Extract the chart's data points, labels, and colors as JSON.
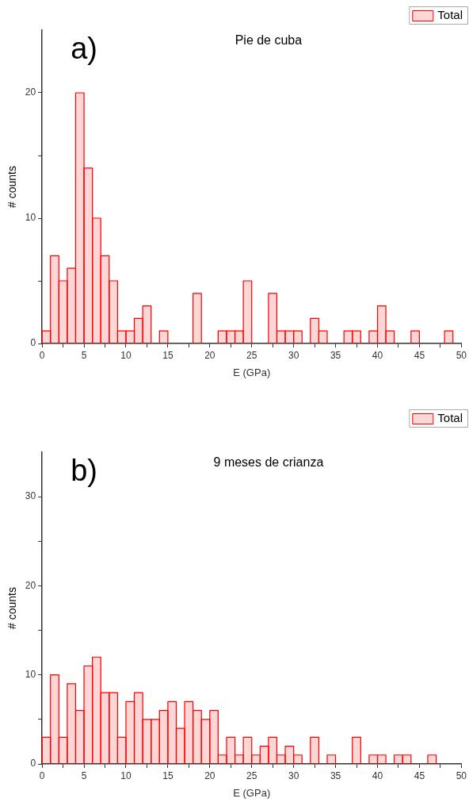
{
  "chart_data": [
    {
      "type": "histogram",
      "title": "Pie de cuba",
      "xlabel": "E (GPa)",
      "ylabel": "# counts",
      "annotations": [
        "a)"
      ],
      "legend": "top right",
      "bins": [
        0,
        1,
        2,
        3,
        4,
        5,
        6,
        7,
        8,
        9,
        10,
        11,
        12,
        13,
        14,
        15,
        16,
        17,
        18,
        19,
        20,
        21,
        22,
        23,
        24,
        25,
        26,
        27,
        28,
        29,
        30,
        31,
        32,
        33,
        34,
        35,
        36,
        37,
        38,
        39,
        40,
        41,
        42,
        43,
        44,
        45,
        46,
        47,
        48,
        49,
        50
      ],
      "series": [
        {
          "name": "Total",
          "color": "#ff0000",
          "values": [
            1,
            7,
            5,
            6,
            20,
            14,
            10,
            7,
            5,
            1,
            1,
            2,
            3,
            0,
            1,
            0,
            0,
            0,
            4,
            0,
            0,
            1,
            1,
            1,
            5,
            0,
            0,
            4,
            1,
            1,
            1,
            0,
            2,
            1,
            0,
            0,
            1,
            1,
            0,
            1,
            3,
            1,
            0,
            0,
            1,
            0,
            0,
            0,
            1,
            0
          ]
        }
      ],
      "xlim": [
        0,
        50
      ],
      "xticks": [
        0,
        {
          "value": 2.5,
          "label": null
        },
        5,
        {
          "value": 7.5,
          "label": null
        },
        10,
        {
          "value": 12.5,
          "label": null
        },
        15,
        {
          "value": 17.5,
          "label": null
        },
        20,
        {
          "value": 22.5,
          "label": null
        },
        25,
        {
          "value": 27.5,
          "label": null
        },
        30,
        {
          "value": 32.5,
          "label": null
        },
        35,
        {
          "value": 37.5,
          "label": null
        },
        40,
        {
          "value": 42.5,
          "label": null
        },
        45,
        {
          "value": 47.5,
          "label": null
        },
        50
      ],
      "ylim": [
        0,
        25
      ],
      "yticks": [
        0,
        {
          "value": 5,
          "label": null
        },
        10,
        {
          "value": 15,
          "label": null
        },
        20
      ]
    },
    {
      "type": "histogram",
      "title": "9 meses de crianza",
      "xlabel": "E (GPa)",
      "ylabel": "# counts",
      "annotations": [
        "b)"
      ],
      "legend": "top right",
      "bins": [
        0,
        1,
        2,
        3,
        4,
        5,
        6,
        7,
        8,
        9,
        10,
        11,
        12,
        13,
        14,
        15,
        16,
        17,
        18,
        19,
        20,
        21,
        22,
        23,
        24,
        25,
        26,
        27,
        28,
        29,
        30,
        31,
        32,
        33,
        34,
        35,
        36,
        37,
        38,
        39,
        40,
        41,
        42,
        43,
        44,
        45,
        46,
        47,
        48,
        49,
        50
      ],
      "series": [
        {
          "name": "Total",
          "color": "#ff0000",
          "values": [
            3,
            10,
            3,
            9,
            6,
            11,
            12,
            8,
            8,
            3,
            7,
            8,
            5,
            5,
            6,
            7,
            4,
            7,
            6,
            5,
            6,
            1,
            3,
            1,
            3,
            1,
            2,
            3,
            1,
            2,
            1,
            0,
            3,
            0,
            1,
            0,
            0,
            3,
            0,
            1,
            1,
            0,
            1,
            1,
            0,
            0,
            1,
            0,
            0,
            0
          ]
        }
      ],
      "xlim": [
        0,
        50
      ],
      "xticks": [
        0,
        {
          "value": 2.5,
          "label": null
        },
        5,
        {
          "value": 7.5,
          "label": null
        },
        10,
        {
          "value": 12.5,
          "label": null
        },
        15,
        {
          "value": 17.5,
          "label": null
        },
        20,
        {
          "value": 22.5,
          "label": null
        },
        25,
        {
          "value": 27.5,
          "label": null
        },
        30,
        {
          "value": 32.5,
          "label": null
        },
        35,
        {
          "value": 37.5,
          "label": null
        },
        40,
        {
          "value": 42.5,
          "label": null
        },
        45,
        {
          "value": 47.5,
          "label": null
        },
        50
      ],
      "ylim": [
        0,
        35
      ],
      "yticks": [
        0,
        {
          "value": 5,
          "label": null
        },
        10,
        {
          "value": 15,
          "label": null
        },
        20,
        {
          "value": 25,
          "label": null
        },
        30
      ]
    }
  ]
}
